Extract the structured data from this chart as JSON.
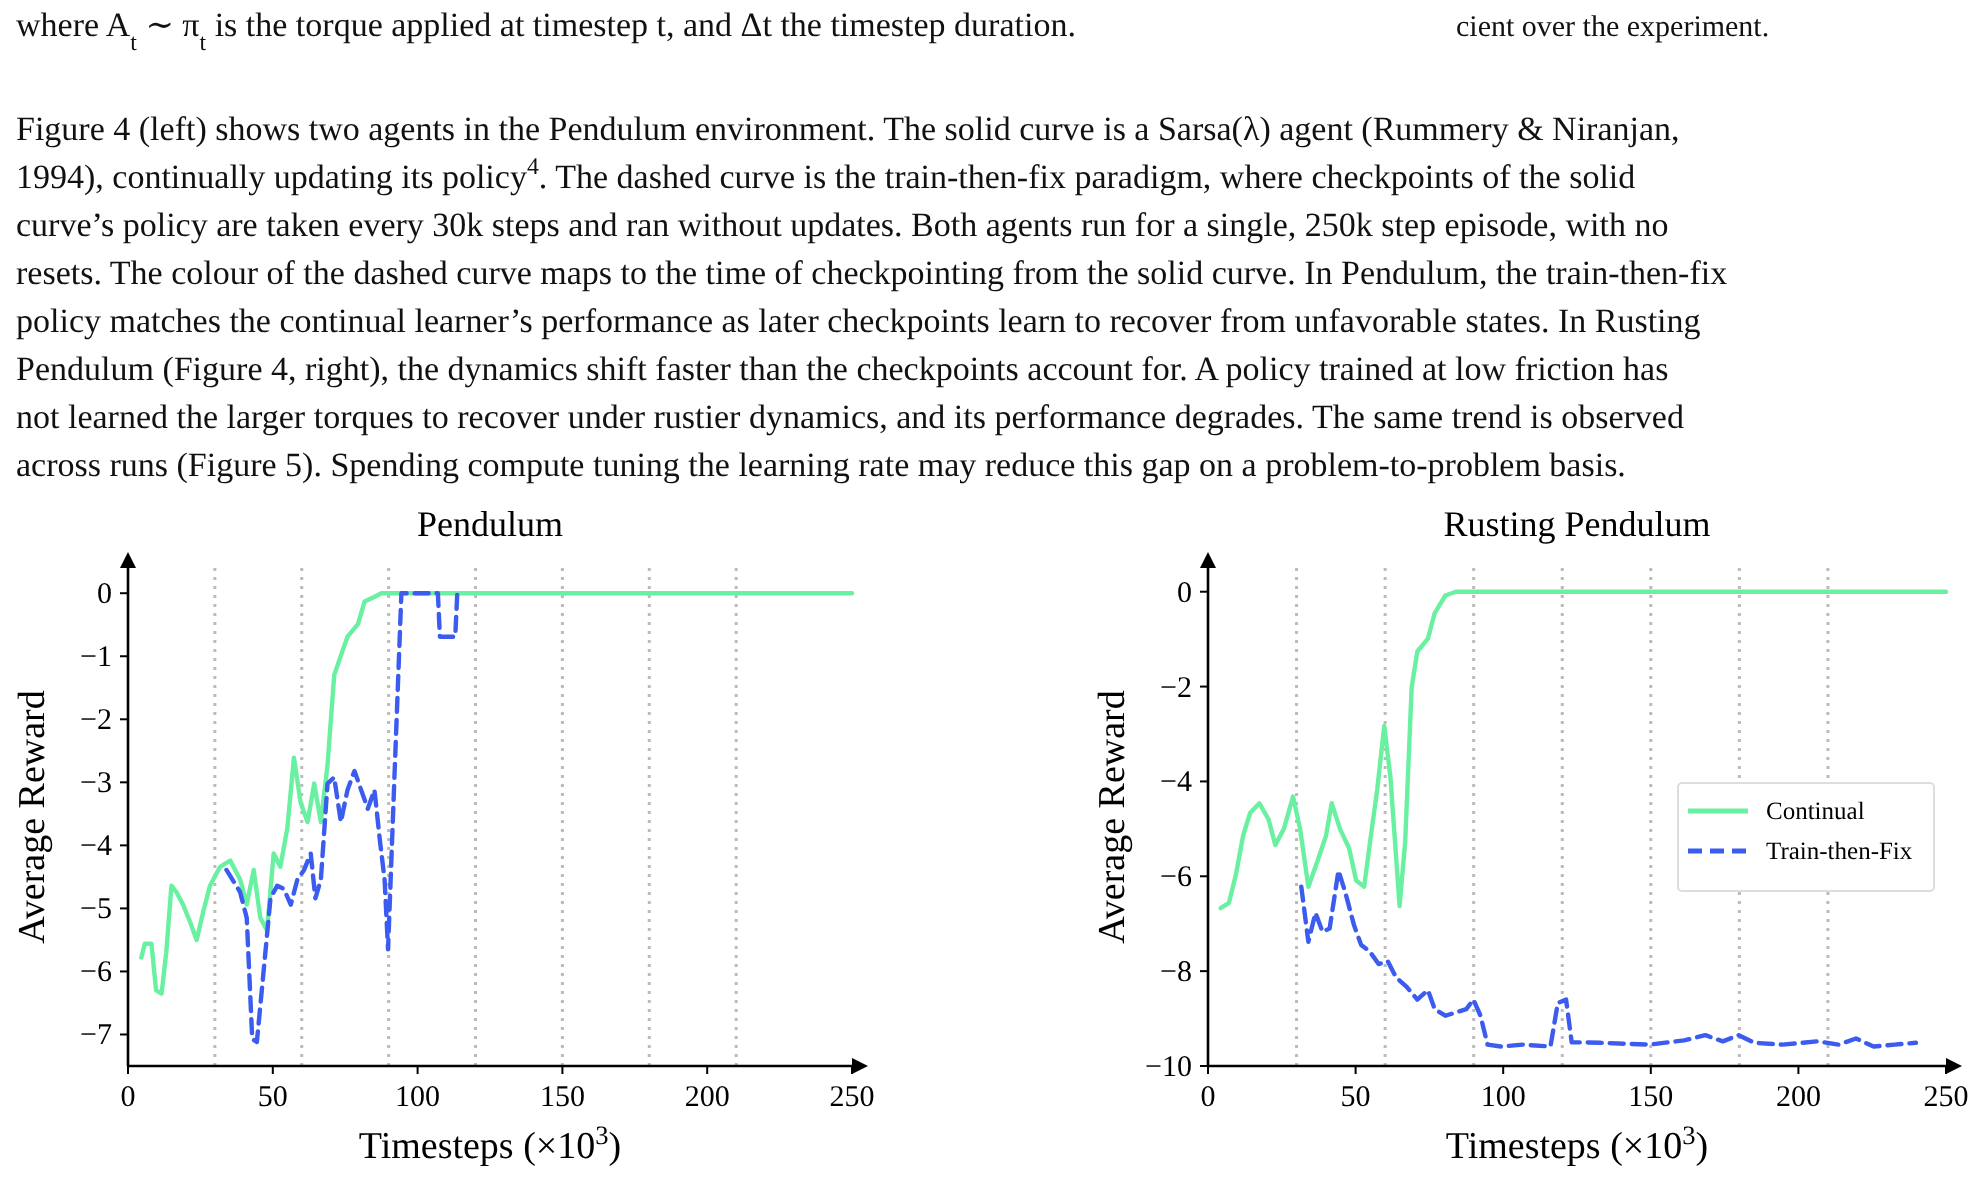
{
  "chart_data": [
    {
      "type": "other",
      "annotations": [
        "where A$_{t}$ ∼ π$_{t}$ is the torque applied at timestep t, and Δt the timestep duration.",
        "cient over the experiment.",
        "Figure 4 (left) shows two agents in the Pendulum environment. The solid curve is a Sarsa(λ) agent (Rummery & Niranjan,",
        "1994), continually updating its policy$^{4}$. The dashed curve is the train-then-fix paradigm, where checkpoints of the solid",
        "curve’s policy are taken every 30k steps and ran without updates. Both agents run for a single, 250k step episode, with no",
        "resets. The colour of the dashed curve maps to the time of checkpointing from the solid curve. In Pendulum, the train-then-fix",
        "policy matches the continual learner’s performance as later checkpoints learn to recover from unfavorable states. In Rusting",
        "Pendulum (Figure 4, right), the dynamics shift faster than the checkpoints account for. A policy trained at low friction has",
        "not learned the larger torques to recover under rustier dynamics, and its performance degrades. The same trend is observed",
        "across runs (Figure 5). Spending compute tuning the learning rate may reduce this gap on a problem-to-problem basis."
      ]
    },
    {
      "type": "line",
      "title": "Pendulum",
      "xlabel": "Timesteps (×10$^{3}$)",
      "ylabel": "Average Reward",
      "xlim": [
        0,
        250
      ],
      "ylim": [
        -7.5,
        0.4
      ],
      "xticks": [
        0,
        50,
        100,
        150,
        200,
        250
      ],
      "yticks": [
        0,
        -1,
        -2,
        -3,
        -4,
        -5,
        -6,
        -7
      ],
      "grid": false,
      "legend": false,
      "ref_lines": [
        {
          "axis": "x",
          "value": 30,
          "color": "#bbbbbb",
          "line_style": "dotted"
        },
        {
          "axis": "x",
          "value": 60,
          "color": "#bbbbbb",
          "line_style": "dotted"
        },
        {
          "axis": "x",
          "value": 90,
          "color": "#bbbbbb",
          "line_style": "dotted"
        },
        {
          "axis": "x",
          "value": 120,
          "color": "#bbbbbb",
          "line_style": "dotted"
        },
        {
          "axis": "x",
          "value": 150,
          "color": "#bbbbbb",
          "line_style": "dotted"
        },
        {
          "axis": "x",
          "value": 180,
          "color": "#bbbbbb",
          "line_style": "dotted"
        },
        {
          "axis": "x",
          "value": 210,
          "color": "#bbbbbb",
          "line_style": "dotted"
        }
      ],
      "series": [
        {
          "color": "#69f0a0",
          "line_style": "solid",
          "x": [
            4.6,
            5.8,
            8.1,
            9.7,
            11.6,
            13.2,
            15,
            16.7,
            19,
            21.3,
            23.7,
            26,
            28.3,
            31.8,
            35.3,
            38.7,
            41,
            43.4,
            45.7,
            48,
            50.3,
            52.6,
            55,
            57.3,
            59.6,
            62,
            64.3,
            66.6,
            68.9,
            71.2,
            73.5,
            75.8,
            79.4,
            81.7,
            85,
            87.5,
            250
          ],
          "values": [
            -5.78,
            -5.56,
            -5.56,
            -6.3,
            -6.35,
            -5.7,
            -4.64,
            -4.74,
            -4.94,
            -5.2,
            -5.5,
            -5.05,
            -4.64,
            -4.34,
            -4.24,
            -4.54,
            -4.94,
            -4.39,
            -5.15,
            -5.35,
            -4.13,
            -4.34,
            -3.73,
            -2.61,
            -3.32,
            -3.63,
            -3.02,
            -3.63,
            -2.72,
            -1.3,
            -0.99,
            -0.69,
            -0.49,
            -0.13,
            -0.06,
            0,
            0
          ]
        },
        {
          "color": "#3c5cf0",
          "line_style": "dashed",
          "x": [
            34,
            38.7,
            41,
            42.9,
            44.5,
            46.9,
            49.2,
            51.5,
            53.8,
            56.2,
            58.5,
            60.8,
            63.1,
            64.7,
            66.6,
            68.9,
            71.2,
            73.5,
            75.8,
            78.2,
            80.5,
            82.8,
            85.1,
            87,
            88.6,
            89.8,
            92,
            94.4,
            107,
            107.7,
            113,
            113.7
          ],
          "values": [
            -4.39,
            -4.74,
            -5.15,
            -7.07,
            -7.12,
            -5.96,
            -4.84,
            -4.64,
            -4.69,
            -4.94,
            -4.54,
            -4.39,
            -4.13,
            -4.84,
            -4.54,
            -3.02,
            -2.92,
            -3.63,
            -3.12,
            -2.82,
            -3.12,
            -3.42,
            -3.12,
            -3.93,
            -4.54,
            -5.65,
            -2.92,
            0,
            0,
            -0.69,
            -0.69,
            0
          ]
        }
      ]
    },
    {
      "type": "line",
      "title": "Rusting Pendulum",
      "xlabel": "Timesteps (×10$^{3}$)",
      "ylabel": "Average Reward",
      "xlim": [
        0,
        250
      ],
      "ylim": [
        -10,
        0.5
      ],
      "xticks": [
        0,
        50,
        100,
        150,
        200,
        250
      ],
      "yticks": [
        0,
        -2,
        -4,
        -6,
        -8,
        -10
      ],
      "grid": false,
      "legend": "right",
      "ref_lines": [
        {
          "axis": "x",
          "value": 30,
          "color": "#bbbbbb",
          "line_style": "dotted"
        },
        {
          "axis": "x",
          "value": 60,
          "color": "#bbbbbb",
          "line_style": "dotted"
        },
        {
          "axis": "x",
          "value": 90,
          "color": "#bbbbbb",
          "line_style": "dotted"
        },
        {
          "axis": "x",
          "value": 120,
          "color": "#bbbbbb",
          "line_style": "dotted"
        },
        {
          "axis": "x",
          "value": 150,
          "color": "#bbbbbb",
          "line_style": "dotted"
        },
        {
          "axis": "x",
          "value": 180,
          "color": "#bbbbbb",
          "line_style": "dotted"
        },
        {
          "axis": "x",
          "value": 210,
          "color": "#bbbbbb",
          "line_style": "dotted"
        }
      ],
      "series": [
        {
          "name": "Continual",
          "color": "#69f0a0",
          "line_style": "solid",
          "x": [
            4.3,
            7.1,
            9.5,
            11.9,
            14.3,
            17.4,
            20.5,
            22.8,
            25.7,
            28.8,
            31.2,
            34,
            37.1,
            40,
            41.9,
            44.7,
            47.8,
            50.2,
            52.9,
            54.9,
            57.3,
            59.7,
            61.8,
            64.9,
            66.8,
            69,
            70.9,
            74.5,
            76.8,
            80.4,
            84,
            250
          ],
          "values": [
            -6.67,
            -6.56,
            -5.95,
            -5.14,
            -4.66,
            -4.46,
            -4.8,
            -5.34,
            -5,
            -4.32,
            -5,
            -6.22,
            -5.68,
            -5.14,
            -4.46,
            -5,
            -5.41,
            -6.09,
            -6.22,
            -5.27,
            -4.18,
            -2.83,
            -3.91,
            -6.63,
            -5.27,
            -2.01,
            -1.26,
            -0.99,
            -0.45,
            -0.08,
            0,
            0
          ]
        },
        {
          "name": "Train-then-Fix",
          "color": "#3c5cf0",
          "line_style": "dashed",
          "x": [
            31.6,
            34,
            36.4,
            38.8,
            41.2,
            44.2,
            46.6,
            49.5,
            51.9,
            54.7,
            57.8,
            60.9,
            63.7,
            67.3,
            70.9,
            74.5,
            76.8,
            80.4,
            84,
            87.5,
            89.9,
            92.3,
            94.7,
            99.4,
            106.6,
            116,
            118.5,
            121.3,
            123.2,
            132.7,
            149.4,
            161.3,
            168.5,
            174.4,
            179.8,
            185,
            194.6,
            206.5,
            213.6,
            219.5,
            225.5,
            232.6,
            239.8
          ],
          "values": [
            -6.22,
            -7.38,
            -6.77,
            -7.17,
            -7.1,
            -5.88,
            -6.36,
            -7.04,
            -7.45,
            -7.58,
            -7.85,
            -7.79,
            -8.13,
            -8.33,
            -8.6,
            -8.4,
            -8.8,
            -8.94,
            -8.87,
            -8.8,
            -8.6,
            -8.94,
            -9.55,
            -9.59,
            -9.55,
            -9.59,
            -8.67,
            -8.6,
            -9.5,
            -9.51,
            -9.55,
            -9.46,
            -9.35,
            -9.48,
            -9.35,
            -9.51,
            -9.55,
            -9.48,
            -9.55,
            -9.42,
            -9.59,
            -9.55,
            -9.51
          ]
        }
      ]
    }
  ]
}
